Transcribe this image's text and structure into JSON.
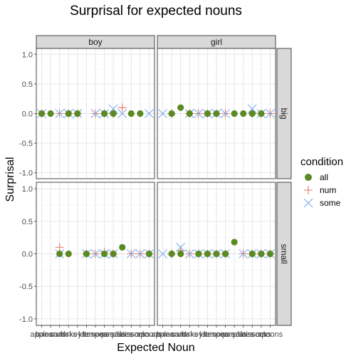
{
  "chart_data": {
    "type": "scatter",
    "title": "Surprisal for expected nouns",
    "xlabel": "Expected Noun",
    "ylabel": "Surprisal",
    "ylim": [
      -1.1,
      1.1
    ],
    "y_ticks": [
      "-1.0",
      "-0.5",
      "0.0",
      "0.5",
      "1.0"
    ],
    "y_tick_values": [
      -1.0,
      -0.5,
      0.0,
      0.5,
      1.0
    ],
    "categories": [
      "apples",
      "bananas",
      "cards",
      "forks",
      "keys",
      "kites",
      "lemons",
      "pears",
      "pencils",
      "plates",
      "scissors",
      "socks",
      "spoons"
    ],
    "facet_columns": [
      "boy",
      "girl"
    ],
    "facet_rows": [
      "big",
      "small"
    ],
    "grid": true,
    "legend": {
      "title": "condition",
      "position": "right",
      "entries": [
        {
          "name": "all",
          "shape": "circle",
          "color": "#5a8a23"
        },
        {
          "name": "num",
          "shape": "plus",
          "color": "#e07a63"
        },
        {
          "name": "some",
          "shape": "cross",
          "color": "#7aaef0"
        }
      ]
    },
    "panels": [
      {
        "col": "boy",
        "row": "big",
        "series": [
          {
            "name": "all",
            "values": [
              0,
              0,
              null,
              0,
              0,
              null,
              null,
              0,
              0,
              null,
              0,
              0,
              null
            ]
          },
          {
            "name": "num",
            "values": [
              0,
              null,
              0,
              0,
              0,
              null,
              0,
              0,
              0,
              0.1,
              null,
              null,
              null
            ]
          },
          {
            "name": "some",
            "values": [
              0,
              null,
              0,
              0,
              0,
              null,
              0,
              0,
              0.08,
              0,
              null,
              null,
              0
            ]
          }
        ]
      },
      {
        "col": "girl",
        "row": "big",
        "series": [
          {
            "name": "all",
            "values": [
              null,
              0,
              0.1,
              0,
              null,
              0,
              0,
              null,
              0,
              0,
              0,
              0,
              null
            ]
          },
          {
            "name": "num",
            "values": [
              null,
              0,
              null,
              0,
              0,
              0,
              0,
              0,
              null,
              null,
              0,
              0,
              0
            ]
          },
          {
            "name": "some",
            "values": [
              0,
              null,
              null,
              0,
              0,
              0,
              0,
              0,
              null,
              null,
              0.08,
              0,
              0
            ]
          }
        ]
      },
      {
        "col": "boy",
        "row": "small",
        "series": [
          {
            "name": "all",
            "values": [
              null,
              null,
              0,
              0,
              null,
              0,
              null,
              0,
              0,
              0.1,
              null,
              null,
              0
            ]
          },
          {
            "name": "num",
            "values": [
              null,
              null,
              0.1,
              null,
              null,
              0,
              0,
              0.03,
              0,
              null,
              0,
              0,
              0
            ]
          },
          {
            "name": "some",
            "values": [
              null,
              null,
              0,
              null,
              null,
              0,
              0,
              0,
              0,
              null,
              0,
              0,
              0
            ]
          }
        ]
      },
      {
        "col": "girl",
        "row": "small",
        "series": [
          {
            "name": "all",
            "values": [
              null,
              0,
              0,
              null,
              0,
              0,
              0,
              0,
              0.18,
              null,
              0,
              0,
              0
            ]
          },
          {
            "name": "num",
            "values": [
              null,
              0,
              0.05,
              0,
              0,
              0,
              0,
              0,
              null,
              0,
              0,
              0,
              0
            ]
          },
          {
            "name": "some",
            "values": [
              0,
              null,
              0.1,
              0,
              0,
              0,
              0,
              0,
              null,
              0,
              0,
              0,
              0
            ]
          }
        ]
      }
    ]
  }
}
